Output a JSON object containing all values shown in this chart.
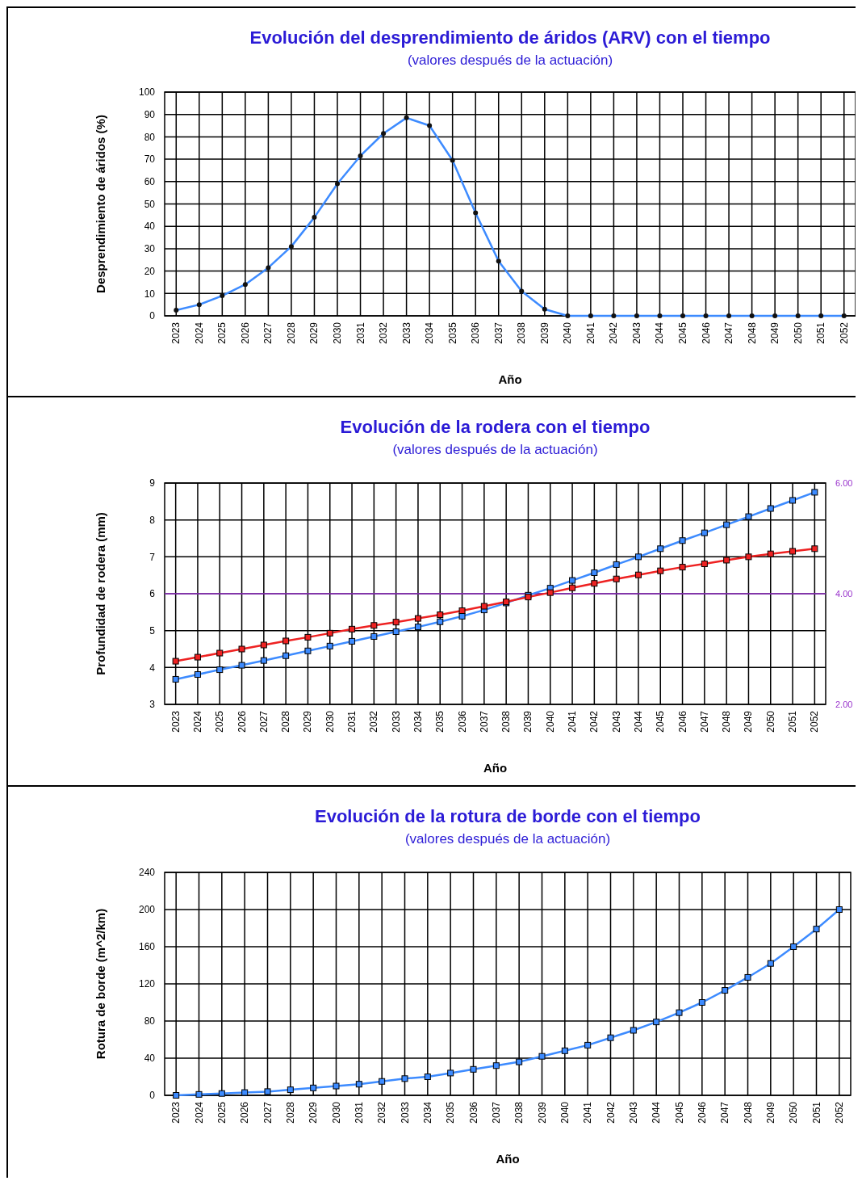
{
  "chart_data": [
    {
      "type": "line",
      "title": "Evolución del desprendimiento de áridos (ARV) con el tiempo",
      "subtitle": "(valores después de la actuación)",
      "xlabel": "Año",
      "ylabel": "Desprendimiento de áridos (%)",
      "categories": [
        "2023",
        "2024",
        "2025",
        "2026",
        "2027",
        "2028",
        "2029",
        "2030",
        "2031",
        "2032",
        "2033",
        "2034",
        "2035",
        "2036",
        "2037",
        "2038",
        "2039",
        "2040",
        "2041",
        "2042",
        "2043",
        "2044",
        "2045",
        "2046",
        "2047",
        "2048",
        "2049",
        "2050",
        "2051",
        "2052"
      ],
      "series": [
        {
          "color": "#3d8bff",
          "values": [
            2.5,
            5,
            9,
            14,
            21.5,
            31,
            44,
            59,
            71.5,
            81.5,
            88.5,
            85,
            69.5,
            46,
            24.5,
            11,
            3,
            0,
            0,
            0,
            0,
            0,
            0,
            0,
            0,
            0,
            0,
            0,
            0,
            0
          ]
        }
      ],
      "ylim": [
        0,
        100
      ],
      "yticks": [
        0,
        10,
        20,
        30,
        40,
        50,
        60,
        70,
        80,
        90,
        100
      ],
      "grid": true,
      "marker": "circle"
    },
    {
      "type": "line",
      "title": "Evolución de la rodera con el tiempo",
      "subtitle": "(valores después de la actuación)",
      "xlabel": "Año",
      "ylabel": "Profundidad de rodera (mm)",
      "categories": [
        "2023",
        "2024",
        "2025",
        "2026",
        "2027",
        "2028",
        "2029",
        "2030",
        "2031",
        "2032",
        "2033",
        "2034",
        "2035",
        "2036",
        "2037",
        "2038",
        "2039",
        "2040",
        "2041",
        "2042",
        "2043",
        "2044",
        "2045",
        "2046",
        "2047",
        "2048",
        "2049",
        "2050",
        "2051",
        "2052"
      ],
      "series": [
        {
          "color": "#3d8bff",
          "values": [
            3.68,
            3.81,
            3.94,
            4.06,
            4.19,
            4.32,
            4.45,
            4.58,
            4.71,
            4.84,
            4.97,
            5.1,
            5.24,
            5.39,
            5.56,
            5.75,
            5.96,
            6.15,
            6.36,
            6.57,
            6.79,
            7.0,
            7.22,
            7.44,
            7.65,
            7.87,
            8.09,
            8.31,
            8.53,
            8.75
          ]
        },
        {
          "color": "#ee2222",
          "values": [
            4.17,
            4.28,
            4.39,
            4.5,
            4.61,
            4.72,
            4.82,
            4.93,
            5.04,
            5.14,
            5.23,
            5.33,
            5.43,
            5.54,
            5.66,
            5.78,
            5.91,
            6.03,
            6.16,
            6.28,
            6.4,
            6.51,
            6.62,
            6.72,
            6.81,
            6.91,
            7.0,
            7.08,
            7.15,
            7.22
          ]
        }
      ],
      "ylim": [
        3,
        9
      ],
      "yticks": [
        3,
        4,
        5,
        6,
        7,
        8,
        9
      ],
      "y2lim": [
        2,
        6
      ],
      "y2ticks": [
        {
          "value": 2,
          "label": "2.00"
        },
        {
          "value": 4,
          "label": "4.00"
        },
        {
          "value": 6,
          "label": "6.00"
        }
      ],
      "ref_lines": [
        {
          "axis": "y",
          "value": 6,
          "color": "#9933cc"
        }
      ],
      "grid": true,
      "marker": "square"
    },
    {
      "type": "line",
      "title": "Evolución de la rotura de borde con el tiempo",
      "subtitle": "(valores después de la actuación)",
      "xlabel": "Año",
      "ylabel": "Rotura de borde (m^2/km)",
      "categories": [
        "2023",
        "2024",
        "2025",
        "2026",
        "2027",
        "2028",
        "2029",
        "2030",
        "2031",
        "2032",
        "2033",
        "2034",
        "2035",
        "2036",
        "2037",
        "2038",
        "2039",
        "2040",
        "2041",
        "2042",
        "2043",
        "2044",
        "2045",
        "2046",
        "2047",
        "2048",
        "2049",
        "2050",
        "2051",
        "2052"
      ],
      "series": [
        {
          "color": "#3d8bff",
          "values": [
            0,
            1,
            2,
            3,
            4,
            6,
            8,
            10,
            12,
            15,
            18,
            20,
            24,
            28,
            32,
            36,
            42,
            48,
            54,
            62,
            70,
            79,
            89,
            100,
            113,
            127,
            142,
            160,
            179,
            200
          ]
        }
      ],
      "ylim": [
        0,
        240
      ],
      "yticks": [
        0,
        40,
        80,
        120,
        160,
        200,
        240
      ],
      "grid": true,
      "marker": "square"
    }
  ]
}
